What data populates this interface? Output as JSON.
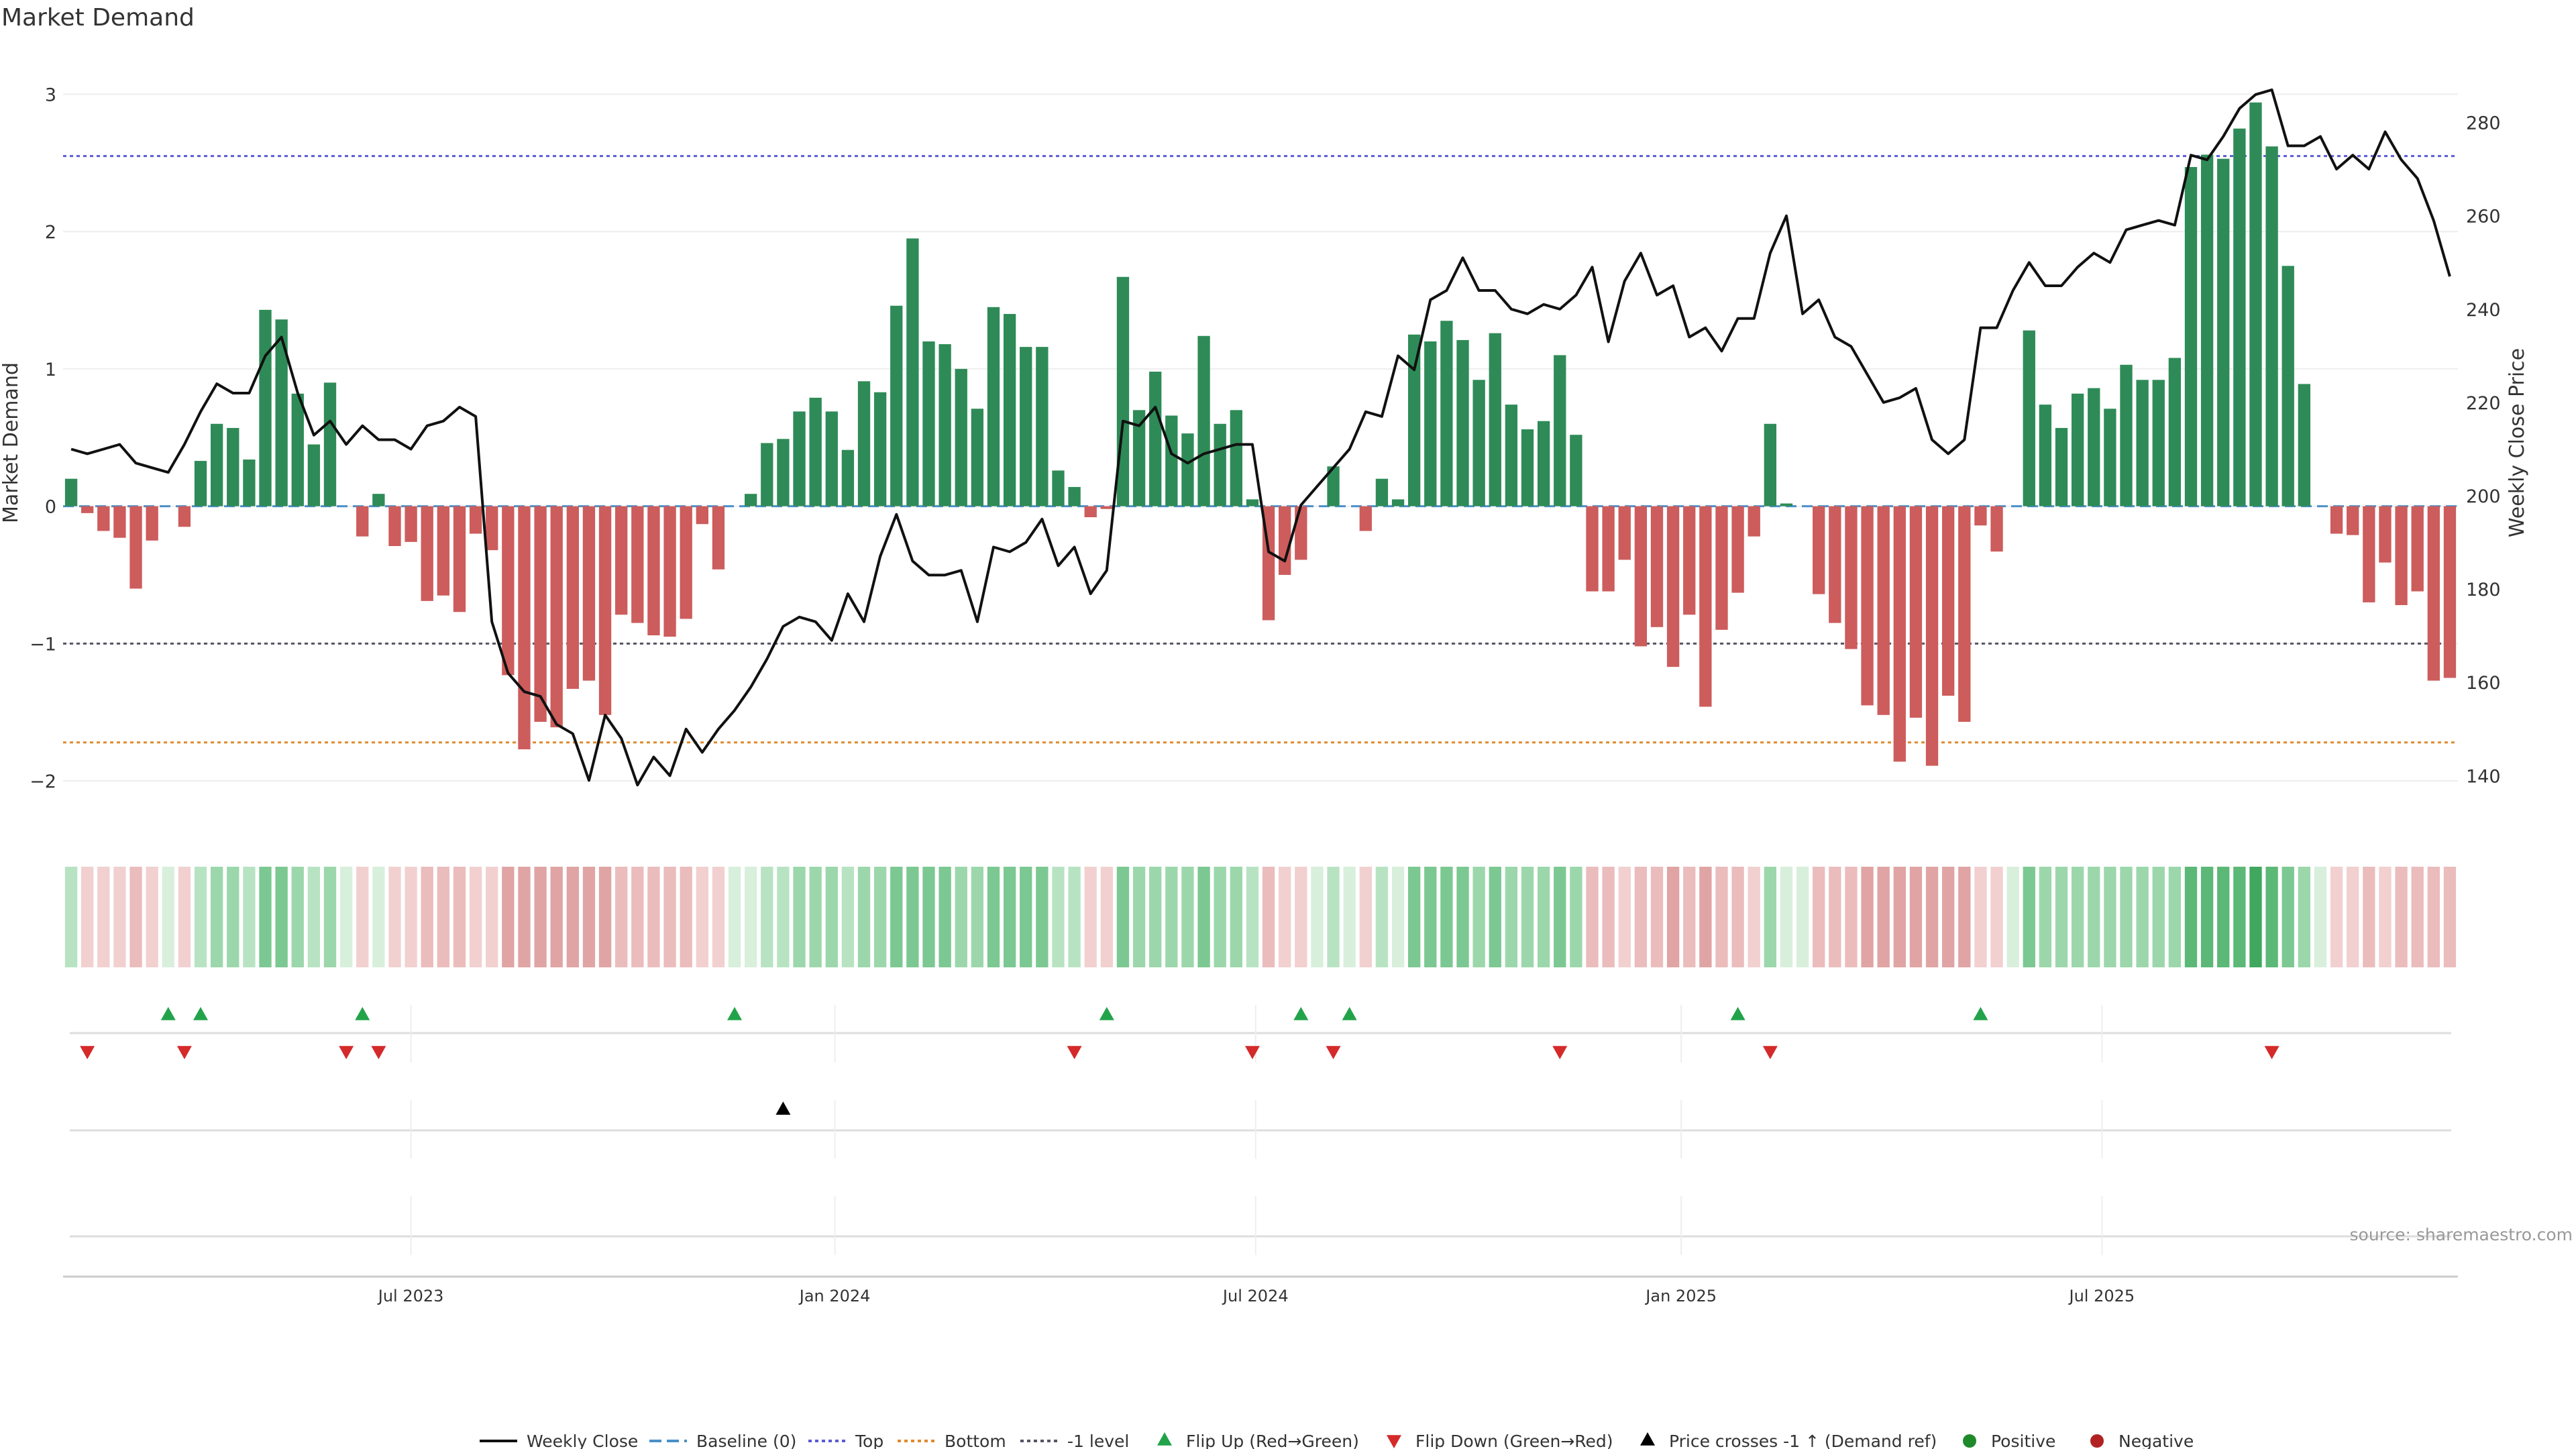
{
  "chart_data": {
    "type": "bar",
    "title": "Market Demand",
    "ylabel": "Market Demand",
    "y2label": "Weekly Close Price",
    "ylim": [
      -2.2,
      3.1
    ],
    "y2lim": [
      133,
      289
    ],
    "yticks": [
      3,
      2,
      1,
      0,
      -1,
      -2
    ],
    "ytick_labels": [
      "3",
      "2",
      "1",
      "0",
      "−1",
      "−2"
    ],
    "y2ticks": [
      280,
      260,
      240,
      220,
      200,
      180,
      160,
      140
    ],
    "xticks": [
      {
        "week": 21.5,
        "label": "Jul 2023"
      },
      {
        "week": 47.7,
        "label": "Jan 2024"
      },
      {
        "week": 73.7,
        "label": "Jul 2024"
      },
      {
        "week": 100,
        "label": "Jan 2025"
      },
      {
        "week": 126,
        "label": "Jul 2025"
      }
    ],
    "levels": {
      "top": 2.55,
      "bottom": -1.72,
      "minus_one": -1.0,
      "baseline": 0
    },
    "level_colors": {
      "top": "#5b5bd6",
      "bottom": "#e08a2c",
      "minus_one": "#555566",
      "baseline": "#4a90c8"
    },
    "colors": {
      "positive": "#2e8b57",
      "negative": "#cd5c5c",
      "price": "#111111",
      "flip_up": "#22a34a",
      "flip_down": "#d42a2a",
      "cross": "#000000",
      "pos_marker": "#1f8a2a",
      "neg_marker": "#b22222"
    },
    "series": [
      {
        "name": "Market Demand",
        "values": [
          0.2,
          -0.05,
          -0.18,
          -0.23,
          -0.6,
          -0.25,
          0,
          -0.15,
          0.33,
          0.6,
          0.57,
          0.34,
          1.43,
          1.36,
          0.82,
          0.45,
          0.9,
          0,
          -0.22,
          0.09,
          -0.29,
          -0.26,
          -0.69,
          -0.65,
          -0.77,
          -0.2,
          -0.32,
          -1.23,
          -1.77,
          -1.57,
          -1.61,
          -1.33,
          -1.27,
          -1.52,
          -0.79,
          -0.85,
          -0.94,
          -0.95,
          -0.82,
          -0.13,
          -0.46,
          0,
          0.09,
          0.46,
          0.49,
          0.69,
          0.79,
          0.69,
          0.41,
          0.91,
          0.83,
          1.46,
          1.95,
          1.2,
          1.18,
          1.0,
          0.71,
          1.45,
          1.4,
          1.16,
          1.16,
          0.26,
          0.14,
          -0.08,
          -0.02,
          1.67,
          0.7,
          0.98,
          0.66,
          0.53,
          1.24,
          0.6,
          0.7,
          0.05,
          -0.83,
          -0.5,
          -0.39,
          0,
          0.29,
          0,
          -0.18,
          0.2,
          0.05,
          1.25,
          1.2,
          1.35,
          1.21,
          0.92,
          1.26,
          0.74,
          0.56,
          0.62,
          1.1,
          0.52,
          -0.62,
          -0.62,
          -0.39,
          -1.02,
          -0.88,
          -1.17,
          -0.79,
          -1.46,
          -0.9,
          -0.63,
          -0.22,
          0.6,
          0.02,
          0,
          -0.64,
          -0.85,
          -1.04,
          -1.45,
          -1.52,
          -1.86,
          -1.54,
          -1.89,
          -1.38,
          -1.57,
          -0.14,
          -0.33,
          0,
          1.28,
          0.74,
          0.57,
          0.82,
          0.86,
          0.71,
          1.03,
          0.92,
          0.92,
          1.08,
          2.47,
          2.56,
          2.53,
          2.75,
          2.94,
          2.62,
          1.75,
          0.89,
          0,
          -0.2,
          -0.21,
          -0.7,
          -0.41,
          -0.72,
          -0.62,
          -1.27,
          -1.25
        ]
      },
      {
        "name": "Weekly Close",
        "values": [
          210,
          209,
          210,
          211,
          207,
          206,
          205,
          211,
          218,
          224,
          222,
          222,
          230,
          234,
          222,
          213,
          216,
          211,
          215,
          212,
          212,
          210,
          215,
          216,
          219,
          217,
          173,
          162,
          158,
          157,
          151,
          149,
          139,
          153,
          148,
          138,
          144,
          140,
          150,
          145,
          150,
          154,
          159,
          165,
          172,
          174,
          173,
          169,
          179,
          173,
          187,
          196,
          186,
          183,
          183,
          184,
          173,
          189,
          188,
          190,
          195,
          185,
          189,
          179,
          184,
          216,
          215,
          219,
          209,
          207,
          209,
          210,
          211,
          211,
          188,
          186,
          198,
          202,
          206,
          210,
          218,
          217,
          230,
          227,
          242,
          244,
          251,
          244,
          244,
          240,
          239,
          241,
          240,
          243,
          249,
          233,
          246,
          252,
          243,
          245,
          234,
          236,
          231,
          238,
          238,
          252,
          260,
          239,
          242,
          234,
          232,
          226,
          220,
          221,
          223,
          212,
          209,
          212,
          236,
          236,
          244,
          250,
          245,
          245,
          249,
          252,
          250,
          257,
          258,
          259,
          258,
          273,
          272,
          277,
          283,
          286,
          287,
          275,
          275,
          277,
          270,
          273,
          270,
          278,
          272,
          268,
          259,
          247
        ]
      }
    ],
    "strip_levels": [
      1,
      1,
      1,
      1,
      2,
      1,
      0,
      1,
      1,
      2,
      2,
      1,
      3,
      3,
      2,
      1,
      2,
      0,
      1,
      0,
      1,
      1,
      2,
      2,
      2,
      1,
      1,
      3,
      3,
      3,
      3,
      3,
      3,
      3,
      2,
      2,
      2,
      2,
      2,
      1,
      1,
      0,
      0,
      1,
      1,
      2,
      2,
      2,
      1,
      2,
      2,
      3,
      3,
      3,
      3,
      2,
      2,
      3,
      3,
      3,
      3,
      1,
      1,
      1,
      1,
      3,
      2,
      2,
      2,
      2,
      3,
      2,
      2,
      1,
      2,
      1,
      1,
      0,
      1,
      0,
      1,
      1,
      0,
      3,
      3,
      3,
      3,
      2,
      3,
      2,
      2,
      2,
      3,
      2,
      2,
      2,
      1,
      2,
      2,
      3,
      2,
      3,
      2,
      2,
      1,
      2,
      0,
      0,
      2,
      2,
      2,
      3,
      3,
      3,
      3,
      3,
      3,
      3,
      1,
      1,
      0,
      3,
      2,
      2,
      2,
      2,
      2,
      2,
      2,
      2,
      2,
      4,
      4,
      4,
      4,
      5,
      4,
      3,
      2,
      0,
      1,
      1,
      2,
      1,
      2,
      2,
      2,
      2
    ],
    "flip_up_weeks": [
      6,
      8,
      18,
      41,
      64,
      76,
      79,
      103,
      118
    ],
    "flip_down_weeks": [
      1,
      7,
      17,
      19,
      62,
      73,
      78,
      92,
      105,
      136
    ],
    "price_cross_weeks": [
      44
    ],
    "legend": [
      {
        "label": "Weekly Close",
        "marker": "line"
      },
      {
        "label": "Baseline (0)",
        "marker": "dash"
      },
      {
        "label": "Top",
        "marker": "dotted-blue"
      },
      {
        "label": "Bottom",
        "marker": "dotted-orange"
      },
      {
        "label": "-1 level",
        "marker": "dotted-gray"
      },
      {
        "label": "Flip Up (Red→Green)",
        "marker": "triangle-up-green"
      },
      {
        "label": "Flip Down (Green→Red)",
        "marker": "triangle-down-red"
      },
      {
        "label": "Price crosses -1 ↑ (Demand ref)",
        "marker": "triangle-up-black"
      },
      {
        "label": "Positive",
        "marker": "dot-green"
      },
      {
        "label": "Negative",
        "marker": "dot-red"
      }
    ],
    "legend_position": "bottom",
    "source": "source: sharemaestro.com"
  }
}
